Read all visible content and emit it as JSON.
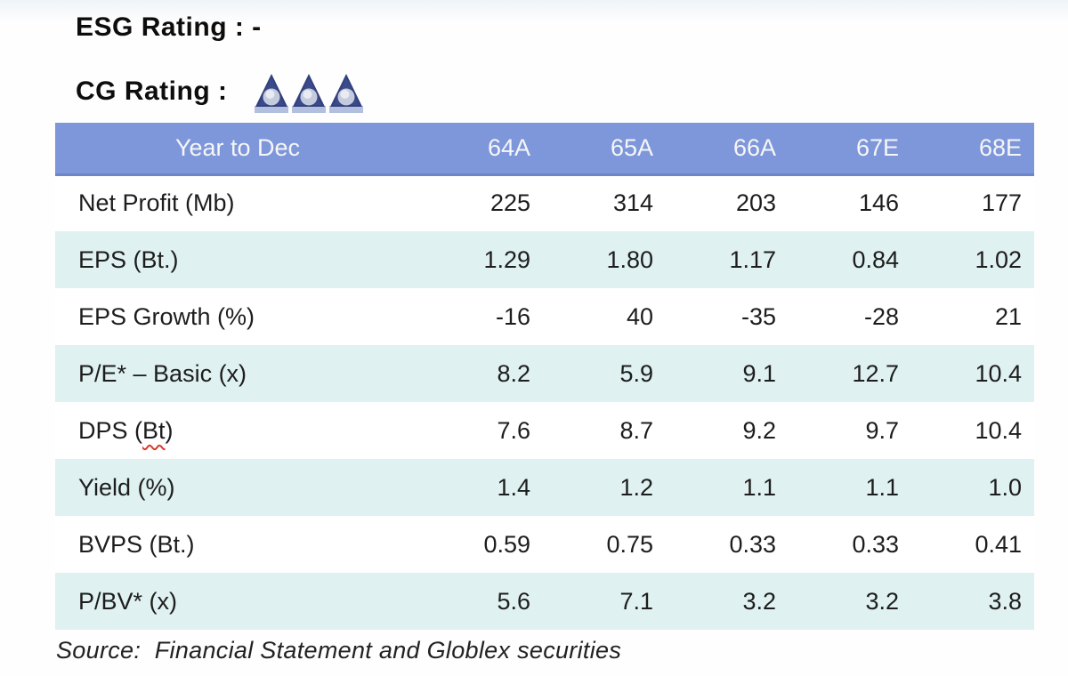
{
  "page": {
    "esg_label": "ESG Rating : -",
    "cg_label": "CG Rating :",
    "cg_triangle_count": 3,
    "colors": {
      "header_bg": "#7e97db",
      "header_border": "#6d86ca",
      "row_alt_bg": "#dff1f0",
      "triangle_navy": "#32407c",
      "triangle_base": "#b3bfde",
      "squiggle_red": "#d93a2e"
    }
  },
  "chart_data": {
    "type": "table",
    "title": "Year to Dec",
    "columns": [
      "Year to Dec",
      "64A",
      "65A",
      "66A",
      "67E",
      "68E"
    ],
    "rows": [
      {
        "label": "Net Profit (Mb)",
        "values": [
          "225",
          "314",
          "203",
          "146",
          "177"
        ]
      },
      {
        "label": "EPS (Bt.)",
        "values": [
          "1.29",
          "1.80",
          "1.17",
          "0.84",
          "1.02"
        ]
      },
      {
        "label": "EPS Growth (%)",
        "values": [
          "-16",
          "40",
          "-35",
          "-28",
          "21"
        ]
      },
      {
        "label": "P/E* – Basic (x)",
        "values": [
          "8.2",
          "5.9",
          "9.1",
          "12.7",
          "10.4"
        ]
      },
      {
        "label": "DPS (Bt)",
        "squiggle": "Bt",
        "values": [
          "7.6",
          "8.7",
          "9.2",
          "9.7",
          "10.4"
        ]
      },
      {
        "label": "Yield (%)",
        "values": [
          "1.4",
          "1.2",
          "1.1",
          "1.1",
          "1.0"
        ]
      },
      {
        "label": "BVPS (Bt.)",
        "values": [
          "0.59",
          "0.75",
          "0.33",
          "0.33",
          "0.41"
        ]
      },
      {
        "label": "P/BV* (x)",
        "values": [
          "5.6",
          "7.1",
          "3.2",
          "3.2",
          "3.8"
        ]
      }
    ]
  },
  "footer": {
    "source": "Source:  Financial Statement and Globlex securities"
  }
}
